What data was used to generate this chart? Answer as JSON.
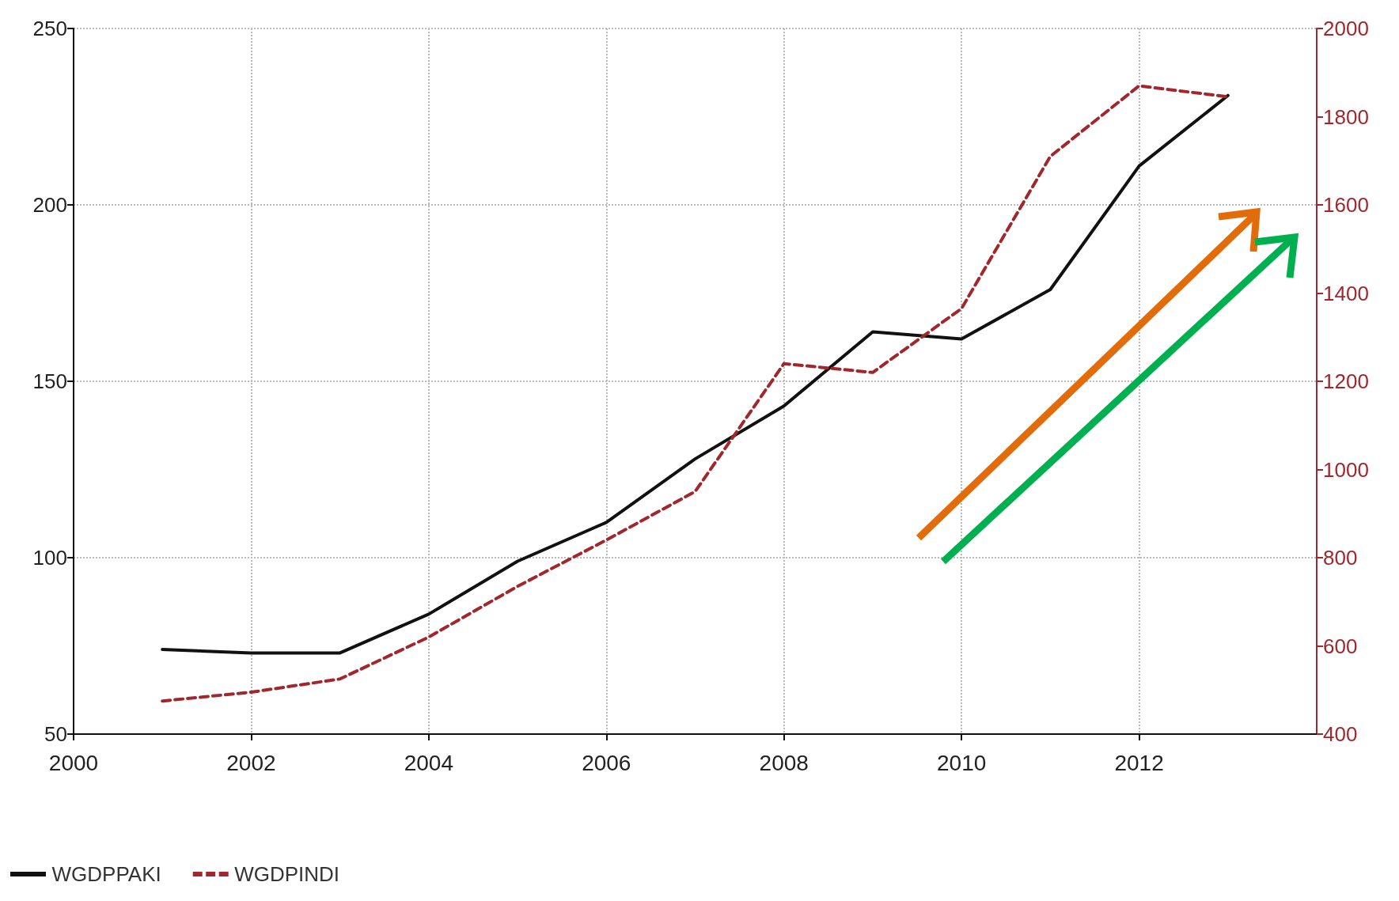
{
  "chart_data": {
    "type": "line",
    "x": [
      2001,
      2002,
      2003,
      2004,
      2005,
      2006,
      2007,
      2008,
      2009,
      2010,
      2011,
      2012,
      2013
    ],
    "series": [
      {
        "name": "WGDPPAKI",
        "color": "#111111",
        "line_style": "solid",
        "values": [
          74,
          73,
          73,
          84,
          99,
          110,
          128,
          143,
          164,
          162,
          176,
          211,
          231
        ]
      },
      {
        "name": "WGDPINDI",
        "color": "#a0282c",
        "line_style": "dashed",
        "axis": "y2",
        "values": [
          475,
          495,
          525,
          620,
          735,
          840,
          950,
          1240,
          1220,
          1365,
          1710,
          1870,
          1845
        ]
      }
    ],
    "xlim": [
      2000,
      2014
    ],
    "xticks": [
      2000,
      2002,
      2004,
      2006,
      2008,
      2010,
      2012
    ],
    "ylim": [
      50,
      250
    ],
    "yticks": [
      50,
      100,
      150,
      200,
      250
    ],
    "y2lim": [
      400,
      2000
    ],
    "y2ticks": [
      400,
      600,
      800,
      1000,
      1200,
      1400,
      1600,
      1800,
      2000
    ],
    "grid": true,
    "legend": "bottom left",
    "marker": "none"
  }
}
